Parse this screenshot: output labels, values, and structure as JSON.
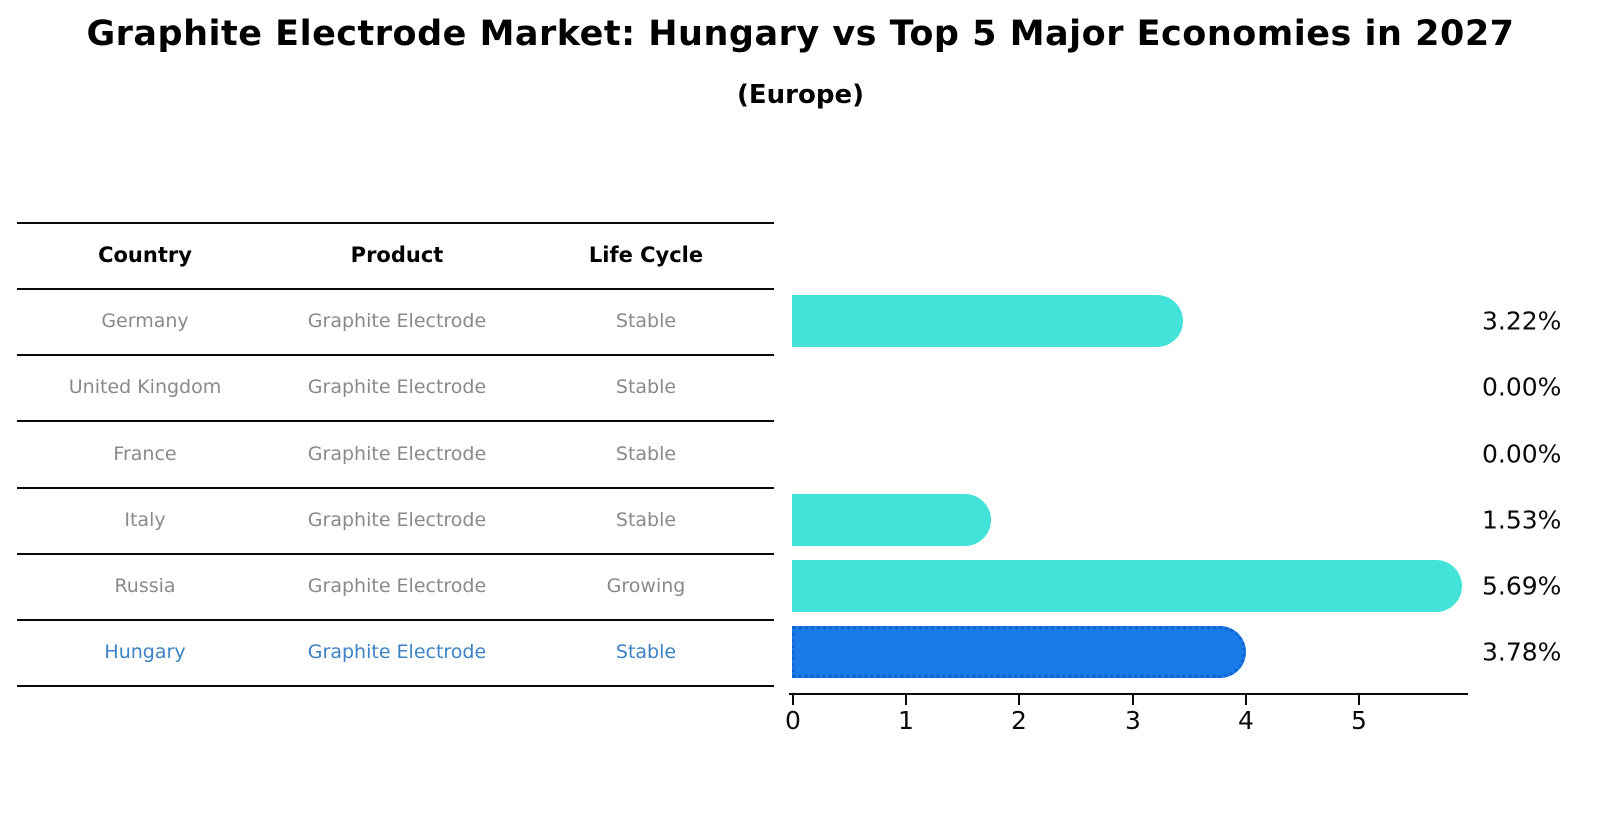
{
  "title": "Graphite Electrode Market: Hungary vs Top 5 Major Economies in 2027",
  "subtitle": "(Europe)",
  "table": {
    "headers": [
      "Country",
      "Product",
      "Life Cycle"
    ],
    "rows": [
      {
        "country": "Germany",
        "product": "Graphite Electrode",
        "life_cycle": "Stable"
      },
      {
        "country": "United Kingdom",
        "product": "Graphite Electrode",
        "life_cycle": "Stable"
      },
      {
        "country": "France",
        "product": "Graphite Electrode",
        "life_cycle": "Stable"
      },
      {
        "country": "Italy",
        "product": "Graphite Electrode",
        "life_cycle": "Stable"
      },
      {
        "country": "Russia",
        "product": "Graphite Electrode",
        "life_cycle": "Growing"
      },
      {
        "country": "Hungary",
        "product": "Graphite Electrode",
        "life_cycle": "Stable"
      }
    ]
  },
  "chart_data": {
    "type": "bar",
    "orientation": "horizontal",
    "categories": [
      "Germany",
      "United Kingdom",
      "France",
      "Italy",
      "Russia",
      "Hungary"
    ],
    "values": [
      3.22,
      0.0,
      0.0,
      1.53,
      5.69,
      3.78
    ],
    "value_labels": [
      "3.22%",
      "0.00%",
      "0.00%",
      "1.53%",
      "5.69%",
      "3.78%"
    ],
    "x_ticks": [
      "0",
      "1",
      "2",
      "3",
      "4",
      "5"
    ],
    "xlim": [
      0,
      5.95
    ],
    "unit": "%",
    "highlight_category": "Hungary",
    "legend": "none",
    "grid": "off",
    "colors": {
      "bar": "#43e3da",
      "highlight_bar": "#197ae8",
      "highlight_bar_border": "#0d64d2",
      "highlight_text": "#3c82c6",
      "row_text": "#8a8a8a",
      "header_text": "#000000"
    }
  }
}
